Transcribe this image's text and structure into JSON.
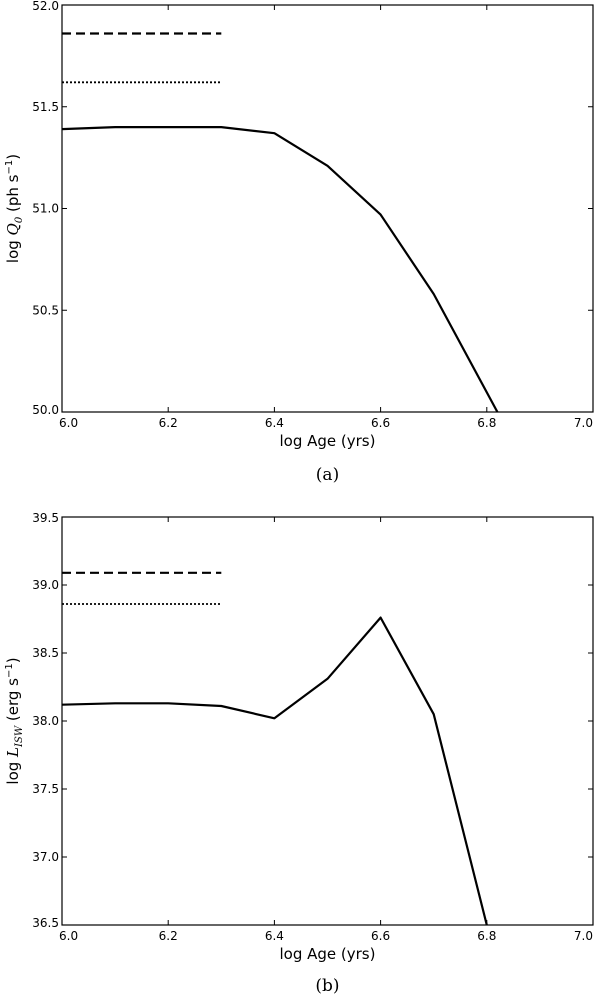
{
  "chart_data": [
    {
      "type": "line",
      "panel_label": "(a)",
      "xlabel": "log Age (yrs)",
      "ylabel": {
        "prefix": "log ",
        "symbol": "Q",
        "subscript": "0",
        "unit_open": " (ph s",
        "superscript": "−1",
        "unit_close": ")"
      },
      "xlim": [
        6.0,
        7.0
      ],
      "ylim": [
        50.0,
        52.0
      ],
      "xticks": [
        "6.0",
        "6.2",
        "6.4",
        "6.6",
        "6.8",
        "7.0"
      ],
      "yticks": [
        "50.0",
        "50.5",
        "51.0",
        "51.5",
        "52.0"
      ],
      "grid": false,
      "series": [
        {
          "style": "solid",
          "x": [
            6.0,
            6.1,
            6.2,
            6.3,
            6.4,
            6.5,
            6.6,
            6.7,
            6.82
          ],
          "y": [
            51.39,
            51.4,
            51.4,
            51.4,
            51.37,
            51.21,
            50.97,
            50.58,
            50.0
          ]
        },
        {
          "style": "dashed",
          "x": [
            6.0,
            6.3
          ],
          "y": [
            51.86,
            51.86
          ]
        },
        {
          "style": "dotted",
          "x": [
            6.0,
            6.3
          ],
          "y": [
            51.62,
            51.62
          ]
        }
      ]
    },
    {
      "type": "line",
      "panel_label": "(b)",
      "xlabel": "log Age (yrs)",
      "ylabel": {
        "prefix": "log ",
        "symbol": "L",
        "subscript": "ISW",
        "unit_open": " (erg s",
        "superscript": "−1",
        "unit_close": ")"
      },
      "xlim": [
        6.0,
        7.0
      ],
      "ylim": [
        36.5,
        39.5
      ],
      "xticks": [
        "6.0",
        "6.2",
        "6.4",
        "6.6",
        "6.8",
        "7.0"
      ],
      "yticks": [
        "36.5",
        "37.0",
        "37.5",
        "38.0",
        "38.5",
        "39.0",
        "39.5"
      ],
      "grid": false,
      "series": [
        {
          "style": "solid",
          "x": [
            6.0,
            6.1,
            6.2,
            6.3,
            6.4,
            6.5,
            6.6,
            6.7,
            6.8
          ],
          "y": [
            38.12,
            38.13,
            38.13,
            38.11,
            38.02,
            38.31,
            38.76,
            38.05,
            36.5
          ]
        },
        {
          "style": "dashed",
          "x": [
            6.0,
            6.3
          ],
          "y": [
            39.09,
            39.09
          ]
        },
        {
          "style": "dotted",
          "x": [
            6.0,
            6.3
          ],
          "y": [
            38.86,
            38.86
          ]
        }
      ]
    }
  ]
}
